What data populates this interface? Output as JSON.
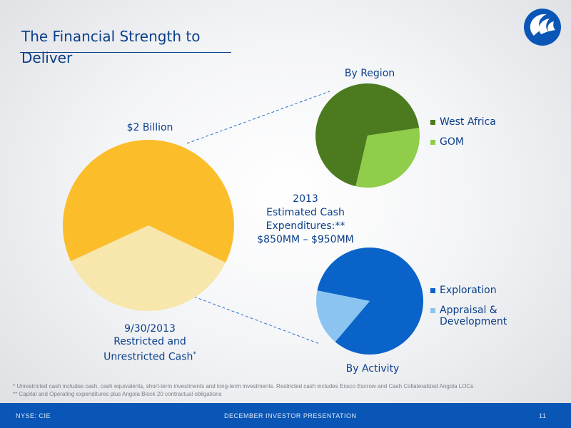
{
  "slide": {
    "title": "The Financial Strength to Deliver",
    "footnotes": [
      "* Unrestricted cash includes cash, cash equivalents, short-term investments and long-term investments.  Restricted cash includes Ensco Escrow and Cash Collateralized Angola LOCs",
      "** Capital and Operating expenditures plus Angola Block 20 contractual obligations"
    ],
    "footer": {
      "left": "NYSE: CIE",
      "center": "DECEMBER INVESTOR PRESENTATION",
      "page": "11"
    }
  },
  "labels": {
    "main_top": "$2 Billion",
    "main_bottom": [
      "9/30/2013",
      "Restricted and",
      "Unrestricted Cash"
    ],
    "main_bottom_mark": "*",
    "center_text": [
      "2013",
      "Estimated Cash",
      "Expenditures:**",
      "$850MM – $950MM"
    ]
  },
  "chart_data": [
    {
      "type": "pie",
      "title": "",
      "slices": [
        {
          "label": "",
          "value": 64,
          "color": "#fbbd2a"
        },
        {
          "label": "",
          "value": 36,
          "color": "#f7e7ad"
        }
      ]
    },
    {
      "type": "pie",
      "title": "By Region",
      "slices": [
        {
          "label": "West Africa",
          "value": 69,
          "color": "#4b7a1f"
        },
        {
          "label": "GOM",
          "value": 31,
          "color": "#8fcd4b"
        }
      ],
      "legend": "right"
    },
    {
      "type": "pie",
      "title": "By Activity",
      "slices": [
        {
          "label": "Exploration",
          "value": 83,
          "color": "#0a63c9"
        },
        {
          "label": "Appraisal & Development",
          "value": 17,
          "color": "#8cc4f1"
        }
      ],
      "legend": "right"
    }
  ],
  "colors": {
    "brand_blue": "#0a56b6",
    "title_blue": "#0b3f8a"
  }
}
